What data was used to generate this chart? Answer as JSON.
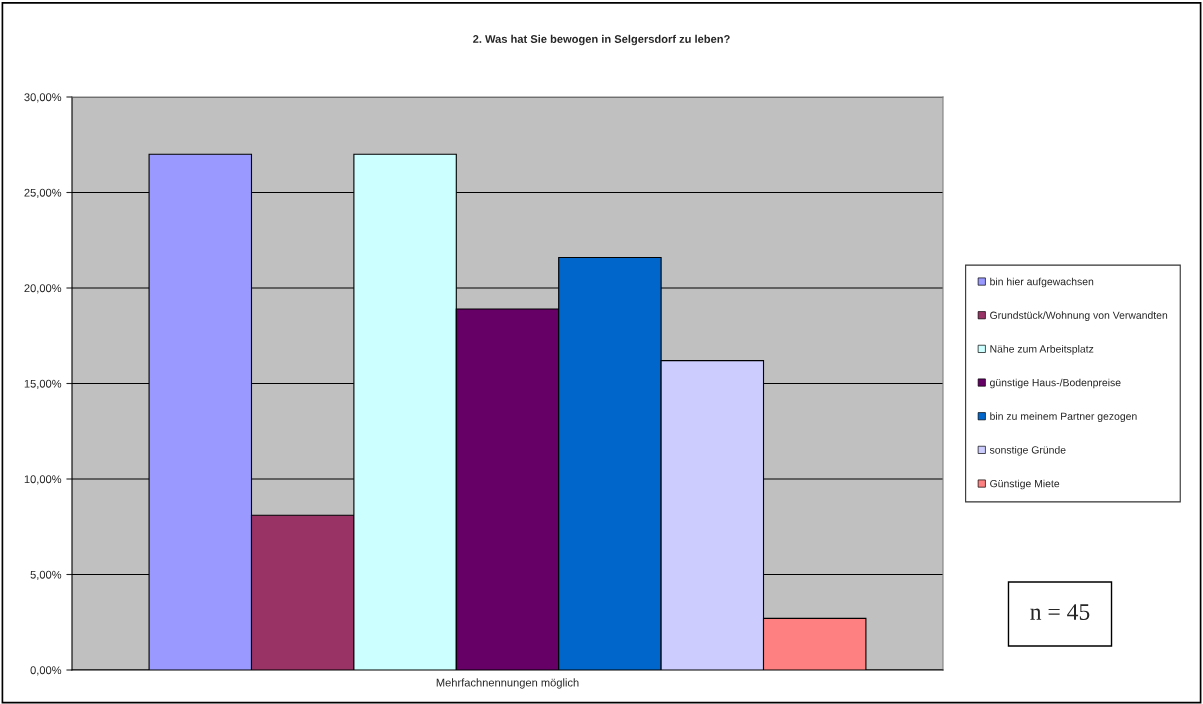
{
  "chart_data": {
    "type": "bar",
    "title": "2. Was hat Sie bewogen in Selgersdorf zu leben?",
    "categories": [
      "Mehrfachnennungen möglich"
    ],
    "series": [
      {
        "name": "bin hier aufgewachsen",
        "color": "#9999ff",
        "values": [
          27.0
        ]
      },
      {
        "name": "Grundstück/Wohnung von Verwandten",
        "color": "#993366",
        "values": [
          8.1
        ]
      },
      {
        "name": "Nähe zum Arbeitsplatz",
        "color": "#ccffff",
        "values": [
          27.0
        ]
      },
      {
        "name": "günstige Haus-/Bodenpreise",
        "color": "#660066",
        "values": [
          18.9
        ]
      },
      {
        "name": "bin zu meinem Partner gezogen",
        "color": "#0066cc",
        "values": [
          21.6
        ]
      },
      {
        "name": "sonstige Gründe",
        "color": "#ccccff",
        "values": [
          16.2
        ]
      },
      {
        "name": "Günstige Miete",
        "color": "#ff8080",
        "values": [
          2.7
        ]
      }
    ],
    "ylim": [
      0,
      30
    ],
    "yticks": [
      {
        "value": 0,
        "label": "0,00%"
      },
      {
        "value": 5,
        "label": "5,00%"
      },
      {
        "value": 10,
        "label": "10,00%"
      },
      {
        "value": 15,
        "label": "15,00%"
      },
      {
        "value": 20,
        "label": "20,00%"
      },
      {
        "value": 25,
        "label": "25,00%"
      },
      {
        "value": 30,
        "label": "30,00%"
      }
    ],
    "grid": "y",
    "legend": "right",
    "annotations": [
      "n = 45"
    ]
  }
}
